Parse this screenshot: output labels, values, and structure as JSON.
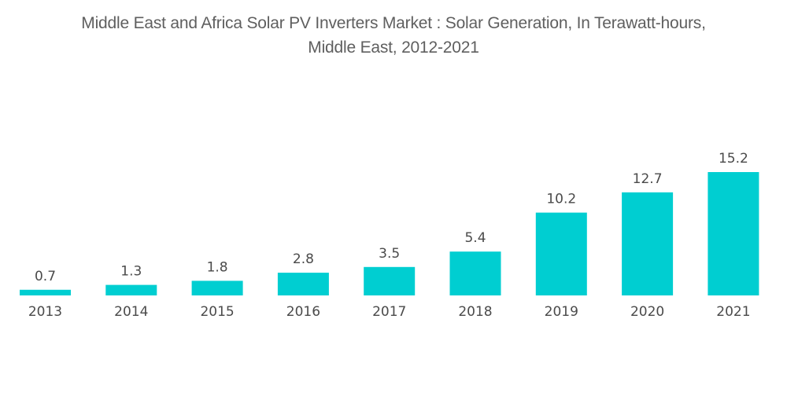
{
  "chart_data": {
    "type": "bar",
    "title_lines": [
      "Middle East and Africa Solar PV Inverters Market : Solar Generation, In Terawatt-hours,",
      "Middle East, 2012-2021"
    ],
    "title": "Middle East and Africa Solar PV Inverters Market : Solar Generation, In Terawatt-hours, Middle East, 2012-2021",
    "xlabel": "",
    "ylabel": "",
    "categories": [
      "2013",
      "2014",
      "2015",
      "2016",
      "2017",
      "2018",
      "2019",
      "2020",
      "2021"
    ],
    "values": [
      0.7,
      1.3,
      1.8,
      2.8,
      3.5,
      5.4,
      10.2,
      12.7,
      15.2
    ],
    "value_labels": [
      "0.7",
      "1.3",
      "1.8",
      "2.8",
      "3.5",
      "5.4",
      "10.2",
      "12.7",
      "15.2"
    ],
    "ylim": [
      0,
      15.2
    ],
    "grid": false,
    "legend": "none",
    "bar_color": "#00CED1"
  }
}
